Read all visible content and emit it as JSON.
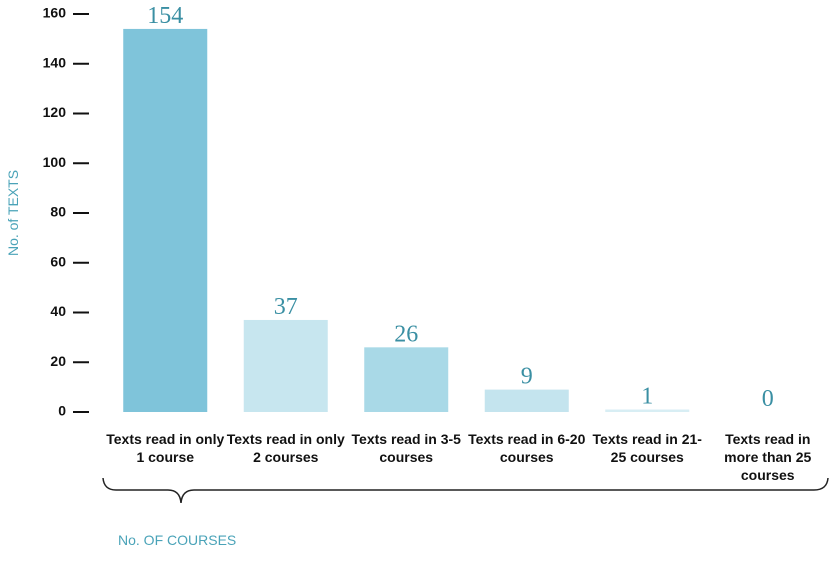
{
  "chart_data": {
    "type": "bar",
    "ylabel": "No. of TEXTS",
    "xlabel": "No. OF COURSES",
    "categories": [
      "Texts read in only 1 course",
      "Texts read in only 2 courses",
      "Texts read in 3-5 courses",
      "Texts read in 6-20 courses",
      "Texts read in 21-25 courses",
      "Texts read in more than 25 courses"
    ],
    "values": [
      154,
      37,
      26,
      9,
      1,
      0
    ],
    "colors": [
      "#7fc4da",
      "#c7e6ef",
      "#a9d9e7",
      "#c4e4ee",
      "#d8eef4",
      "#d8eef4"
    ],
    "ylim": [
      0,
      160
    ],
    "yticks": [
      0,
      20,
      40,
      60,
      80,
      100,
      120,
      140,
      160
    ]
  }
}
